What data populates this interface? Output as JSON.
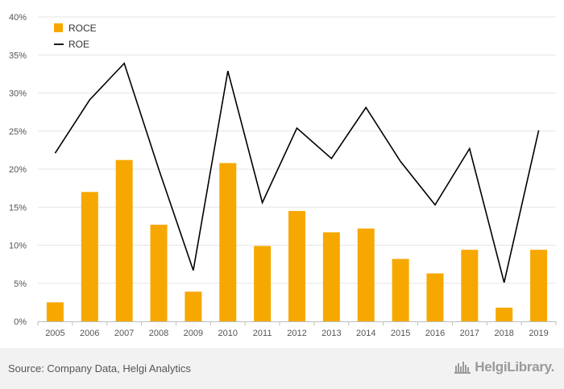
{
  "chart_data": {
    "type": "bar",
    "categories": [
      "2005",
      "2006",
      "2007",
      "2008",
      "2009",
      "2010",
      "2011",
      "2012",
      "2013",
      "2014",
      "2015",
      "2016",
      "2017",
      "2018",
      "2019"
    ],
    "series": [
      {
        "name": "ROCE",
        "type": "bar",
        "color": "#f7a800",
        "values": [
          2.5,
          17.0,
          21.2,
          12.7,
          3.9,
          20.8,
          9.9,
          14.5,
          11.7,
          12.2,
          8.2,
          6.3,
          9.4,
          1.8,
          9.4
        ]
      },
      {
        "name": "ROE",
        "type": "line",
        "color": "#000000",
        "values": [
          22.1,
          29.1,
          33.9,
          20.0,
          6.7,
          32.9,
          15.6,
          25.4,
          21.4,
          28.1,
          21.0,
          15.3,
          22.7,
          5.1,
          25.1
        ]
      }
    ],
    "yticks": [
      "0%",
      "5%",
      "10%",
      "15%",
      "20%",
      "25%",
      "30%",
      "35%",
      "40%"
    ],
    "ylim": [
      0,
      40
    ],
    "grid": true,
    "legend_position": "top-left"
  },
  "footer": {
    "source": "Source: Company Data, Helgi Analytics",
    "brand": "HelgiLibrary."
  }
}
